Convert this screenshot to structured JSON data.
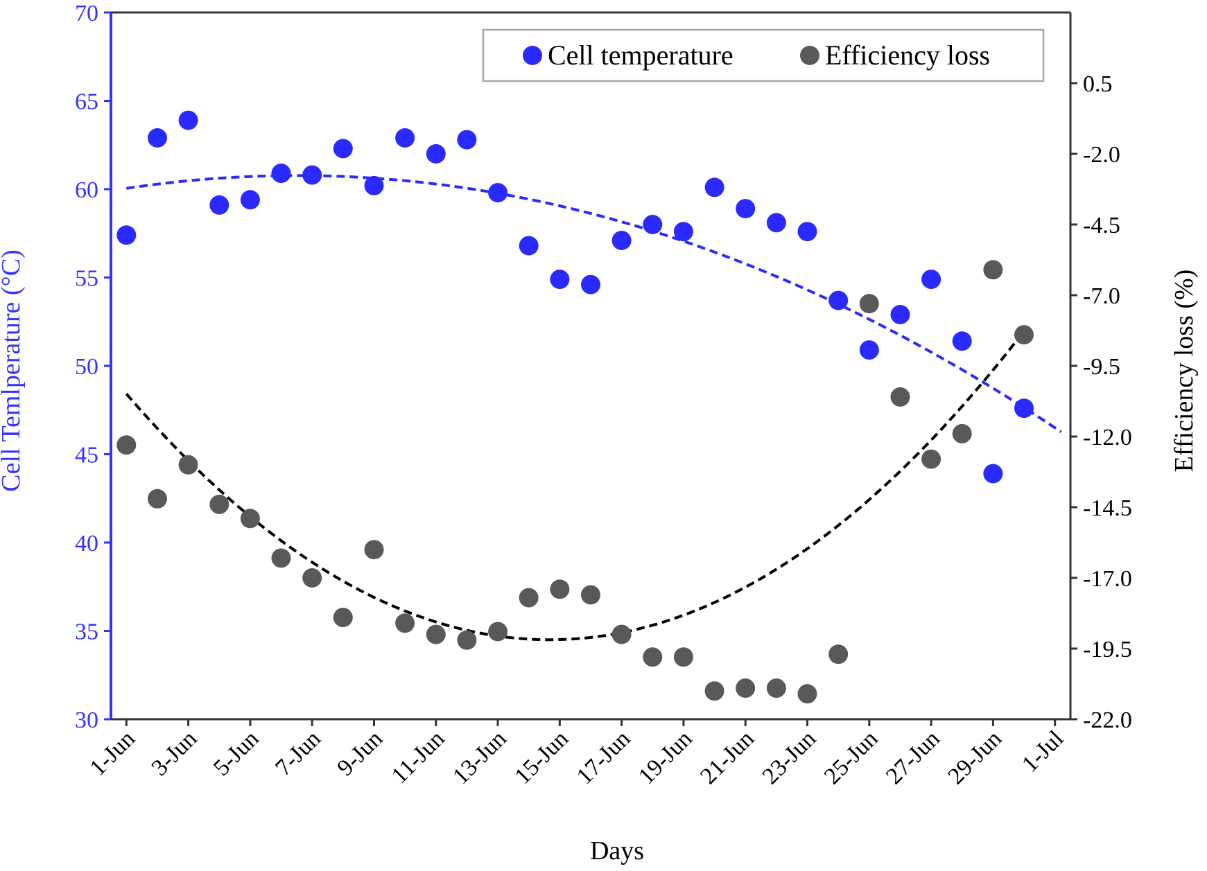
{
  "chart_data": {
    "type": "scatter",
    "x_axis": {
      "label": "Days",
      "tick_labels": [
        "1-Jun",
        "3-Jun",
        "5-Jun",
        "7-Jun",
        "9-Jun",
        "11-Jun",
        "13-Jun",
        "15-Jun",
        "17-Jun",
        "19-Jun",
        "21-Jun",
        "23-Jun",
        "25-Jun",
        "27-Jun",
        "29-Jun",
        "1-Jul"
      ],
      "range_days": [
        0.5,
        31.5
      ]
    },
    "y_left": {
      "label": "Cell Temlperature (°C)",
      "range": [
        30,
        70
      ],
      "ticks": [
        "30",
        "35",
        "40",
        "45",
        "50",
        "55",
        "60",
        "65",
        "70"
      ],
      "color": "#3333ff"
    },
    "y_right": {
      "label": "Efficiency loss (%)",
      "range": [
        -22.0,
        3.0
      ],
      "ticks": [
        "-22.0",
        "-19.5",
        "-17.0",
        "-14.5",
        "-12.0",
        "-9.5",
        "-7.0",
        "-4.5",
        "-2.0",
        "0.5"
      ],
      "color": "#000000"
    },
    "legend": {
      "placement": "top-right",
      "entries": [
        "Cell temperature",
        "Efficiency loss"
      ]
    },
    "series": [
      {
        "name": "Cell temperature",
        "axis": "left",
        "color": "#2a2aff",
        "points": [
          [
            1,
            57.4
          ],
          [
            2,
            62.9
          ],
          [
            3,
            63.9
          ],
          [
            4,
            59.1
          ],
          [
            5,
            59.4
          ],
          [
            6,
            60.9
          ],
          [
            7,
            60.8
          ],
          [
            8,
            62.3
          ],
          [
            9,
            60.2
          ],
          [
            10,
            62.9
          ],
          [
            11,
            62.0
          ],
          [
            12,
            62.8
          ],
          [
            13,
            59.8
          ],
          [
            14,
            56.8
          ],
          [
            15,
            54.9
          ],
          [
            16,
            54.6
          ],
          [
            17,
            57.1
          ],
          [
            18,
            58.0
          ],
          [
            19,
            57.6
          ],
          [
            20,
            60.1
          ],
          [
            21,
            58.9
          ],
          [
            22,
            58.1
          ],
          [
            23,
            57.6
          ],
          [
            24,
            53.7
          ],
          [
            25,
            50.9
          ],
          [
            26,
            52.9
          ],
          [
            27,
            54.9
          ],
          [
            28,
            51.4
          ],
          [
            29,
            43.9
          ],
          [
            30,
            47.6
          ]
        ],
        "trendline": {
          "type": "polynomial-2",
          "coefficients": [
            59.76,
            0.31,
            -0.0238
          ],
          "x_range": [
            1,
            31.2
          ],
          "color": "#2a2aff"
        }
      },
      {
        "name": "Efficiency loss",
        "axis": "right",
        "color": "#595959",
        "points": [
          [
            1,
            -12.3
          ],
          [
            2,
            -14.2
          ],
          [
            3,
            -13.0
          ],
          [
            4,
            -14.4
          ],
          [
            5,
            -14.9
          ],
          [
            6,
            -16.3
          ],
          [
            7,
            -17.0
          ],
          [
            8,
            -18.4
          ],
          [
            9,
            -16.0
          ],
          [
            10,
            -18.6
          ],
          [
            11,
            -19.0
          ],
          [
            12,
            -19.2
          ],
          [
            13,
            -18.9
          ],
          [
            14,
            -17.7
          ],
          [
            15,
            -17.4
          ],
          [
            16,
            -17.6
          ],
          [
            17,
            -19.0
          ],
          [
            18,
            -19.8
          ],
          [
            19,
            -19.8
          ],
          [
            20,
            -21.0
          ],
          [
            21,
            -20.9
          ],
          [
            22,
            -20.9
          ],
          [
            23,
            -21.1
          ],
          [
            24,
            -19.7
          ],
          [
            25,
            -7.3
          ],
          [
            26,
            -10.6
          ],
          [
            27,
            -12.8
          ],
          [
            28,
            -11.9
          ],
          [
            29,
            -6.1
          ],
          [
            30,
            -8.4
          ]
        ],
        "trendline": {
          "type": "polynomial-2",
          "coefficients": [
            -9.17,
            -1.365,
            0.0465
          ],
          "x_range": [
            1,
            30
          ],
          "color": "#000000"
        }
      }
    ]
  }
}
